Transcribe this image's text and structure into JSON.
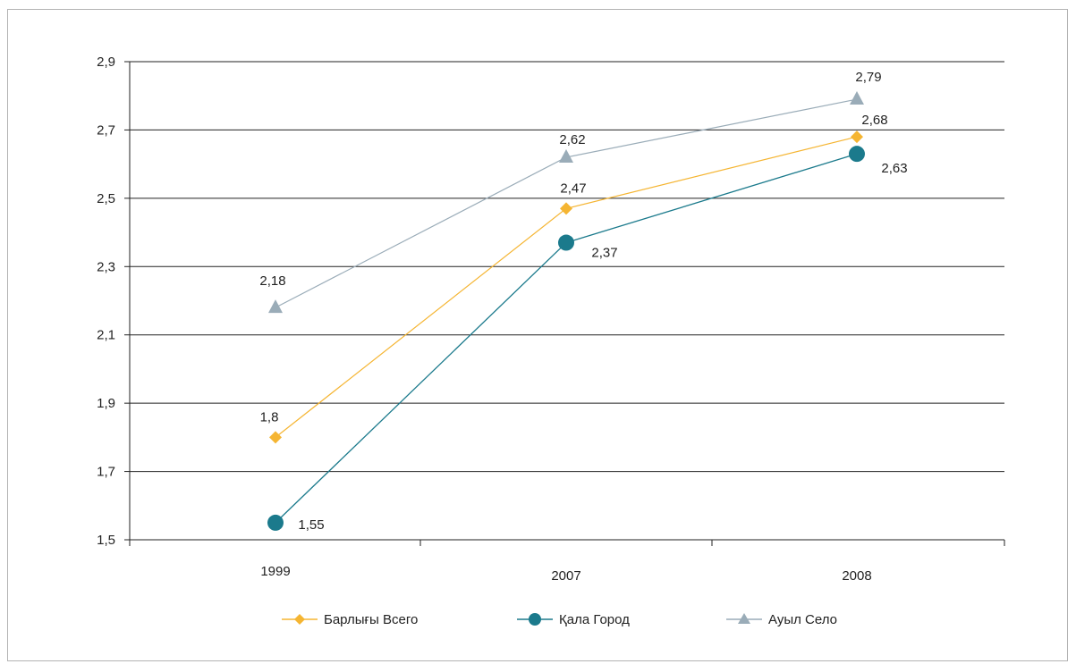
{
  "chart_data": {
    "type": "line",
    "categories": [
      "1999",
      "2007",
      "2008"
    ],
    "ylim": [
      1.5,
      2.9
    ],
    "yticks": [
      "1,5",
      "1,7",
      "1,9",
      "2,1",
      "2,3",
      "2,5",
      "2,7",
      "2,9"
    ],
    "ytick_values": [
      1.5,
      1.7,
      1.9,
      2.1,
      2.3,
      2.5,
      2.7,
      2.9
    ],
    "grid": true,
    "legend_position": "bottom",
    "series": [
      {
        "name": "Барлығы Всего",
        "values": [
          1.8,
          2.47,
          2.68
        ],
        "labels": [
          "1,8",
          "2,47",
          "2,68"
        ],
        "color": "#f5b532",
        "marker": "diamond"
      },
      {
        "name": "Қала Город",
        "values": [
          1.55,
          2.37,
          2.63
        ],
        "labels": [
          "1,55",
          "2,37",
          "2,63"
        ],
        "color": "#1b7a8c",
        "marker": "circle"
      },
      {
        "name": "Ауыл Село",
        "values": [
          2.18,
          2.62,
          2.79
        ],
        "labels": [
          "2,18",
          "2,62",
          "2,79"
        ],
        "color": "#9aacb8",
        "marker": "triangle"
      }
    ]
  }
}
